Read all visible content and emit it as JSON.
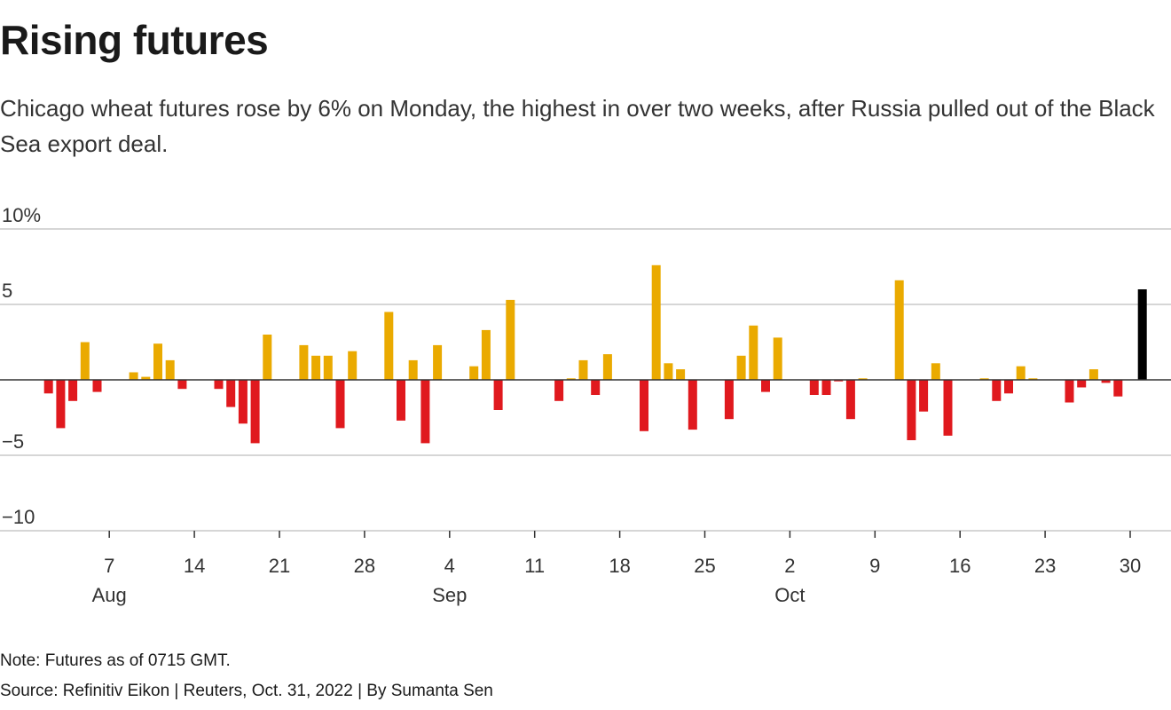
{
  "header": {
    "title": "Rising futures",
    "subtitle": "Chicago wheat futures rose by 6% on Monday, the highest in over two weeks, after Russia pulled out of the Black Sea export deal."
  },
  "footer": {
    "note": "Note: Futures as of 0715 GMT.",
    "source": "Source: Refinitiv Eikon | Reuters, Oct. 31, 2022 | By Sumanta Sen"
  },
  "chart_data": {
    "type": "bar",
    "title": "Rising futures",
    "xlabel": "",
    "ylabel": "",
    "ylim": [
      -10,
      10
    ],
    "y_ticks": [
      {
        "value": 10,
        "label": "10%"
      },
      {
        "value": 5,
        "label": "5"
      },
      {
        "value": -5,
        "label": "−5"
      },
      {
        "value": -10,
        "label": "−10"
      }
    ],
    "x_range": [
      "2022-08-01",
      "2022-10-31"
    ],
    "x_ticks": [
      {
        "date": "2022-08-07",
        "label": "7",
        "month": "Aug"
      },
      {
        "date": "2022-08-14",
        "label": "14"
      },
      {
        "date": "2022-08-21",
        "label": "21"
      },
      {
        "date": "2022-08-28",
        "label": "28"
      },
      {
        "date": "2022-09-04",
        "label": "4",
        "month": "Sep"
      },
      {
        "date": "2022-09-11",
        "label": "11"
      },
      {
        "date": "2022-09-18",
        "label": "18"
      },
      {
        "date": "2022-09-25",
        "label": "25"
      },
      {
        "date": "2022-10-02",
        "label": "2",
        "month": "Oct"
      },
      {
        "date": "2022-10-09",
        "label": "9"
      },
      {
        "date": "2022-10-16",
        "label": "16"
      },
      {
        "date": "2022-10-23",
        "label": "23"
      },
      {
        "date": "2022-10-30",
        "label": "30"
      }
    ],
    "colors": {
      "positive": "#eaaa00",
      "negative": "#e0191e",
      "latest": "#000000",
      "grid": "#c8c8c8",
      "zero": "#333333"
    },
    "series": [
      {
        "points": [
          {
            "date": "2022-08-02",
            "value": -0.9
          },
          {
            "date": "2022-08-03",
            "value": -3.2
          },
          {
            "date": "2022-08-04",
            "value": -1.4
          },
          {
            "date": "2022-08-05",
            "value": 2.5
          },
          {
            "date": "2022-08-06",
            "value": -0.8
          },
          {
            "date": "2022-08-09",
            "value": 0.5
          },
          {
            "date": "2022-08-10",
            "value": 0.2
          },
          {
            "date": "2022-08-11",
            "value": 2.4
          },
          {
            "date": "2022-08-12",
            "value": 1.3
          },
          {
            "date": "2022-08-13",
            "value": -0.6
          },
          {
            "date": "2022-08-16",
            "value": -0.6
          },
          {
            "date": "2022-08-17",
            "value": -1.8
          },
          {
            "date": "2022-08-18",
            "value": -2.9
          },
          {
            "date": "2022-08-19",
            "value": -4.2
          },
          {
            "date": "2022-08-20",
            "value": 3.0
          },
          {
            "date": "2022-08-23",
            "value": 2.3
          },
          {
            "date": "2022-08-24",
            "value": 1.6
          },
          {
            "date": "2022-08-25",
            "value": 1.6
          },
          {
            "date": "2022-08-26",
            "value": -3.2
          },
          {
            "date": "2022-08-27",
            "value": 1.9
          },
          {
            "date": "2022-08-30",
            "value": 4.5
          },
          {
            "date": "2022-08-31",
            "value": -2.7
          },
          {
            "date": "2022-09-01",
            "value": 1.3
          },
          {
            "date": "2022-09-02",
            "value": -4.2
          },
          {
            "date": "2022-09-03",
            "value": 2.3
          },
          {
            "date": "2022-09-06",
            "value": 0.9
          },
          {
            "date": "2022-09-07",
            "value": 3.3
          },
          {
            "date": "2022-09-08",
            "value": -2.0
          },
          {
            "date": "2022-09-09",
            "value": 5.3
          },
          {
            "date": "2022-09-13",
            "value": -1.4
          },
          {
            "date": "2022-09-14",
            "value": 0.1
          },
          {
            "date": "2022-09-15",
            "value": 1.3
          },
          {
            "date": "2022-09-16",
            "value": -1.0
          },
          {
            "date": "2022-09-17",
            "value": 1.7
          },
          {
            "date": "2022-09-20",
            "value": -3.4
          },
          {
            "date": "2022-09-21",
            "value": 7.6
          },
          {
            "date": "2022-09-22",
            "value": 1.1
          },
          {
            "date": "2022-09-23",
            "value": 0.7
          },
          {
            "date": "2022-09-24",
            "value": -3.3
          },
          {
            "date": "2022-09-27",
            "value": -2.6
          },
          {
            "date": "2022-09-28",
            "value": 1.6
          },
          {
            "date": "2022-09-29",
            "value": 3.6
          },
          {
            "date": "2022-09-30",
            "value": -0.8
          },
          {
            "date": "2022-10-01",
            "value": 2.8
          },
          {
            "date": "2022-10-04",
            "value": -1.0
          },
          {
            "date": "2022-10-05",
            "value": -1.0
          },
          {
            "date": "2022-10-06",
            "value": -0.1
          },
          {
            "date": "2022-10-07",
            "value": -2.6
          },
          {
            "date": "2022-10-08",
            "value": 0.1
          },
          {
            "date": "2022-10-11",
            "value": 6.6
          },
          {
            "date": "2022-10-12",
            "value": -4.0
          },
          {
            "date": "2022-10-13",
            "value": -2.1
          },
          {
            "date": "2022-10-14",
            "value": 1.1
          },
          {
            "date": "2022-10-15",
            "value": -3.7
          },
          {
            "date": "2022-10-18",
            "value": 0.1
          },
          {
            "date": "2022-10-19",
            "value": -1.4
          },
          {
            "date": "2022-10-20",
            "value": -0.9
          },
          {
            "date": "2022-10-21",
            "value": 0.9
          },
          {
            "date": "2022-10-22",
            "value": 0.1
          },
          {
            "date": "2022-10-25",
            "value": -1.5
          },
          {
            "date": "2022-10-26",
            "value": -0.5
          },
          {
            "date": "2022-10-27",
            "value": 0.7
          },
          {
            "date": "2022-10-28",
            "value": -0.2
          },
          {
            "date": "2022-10-29",
            "value": -1.1
          },
          {
            "date": "2022-10-31",
            "value": 6.0
          }
        ]
      }
    ]
  }
}
